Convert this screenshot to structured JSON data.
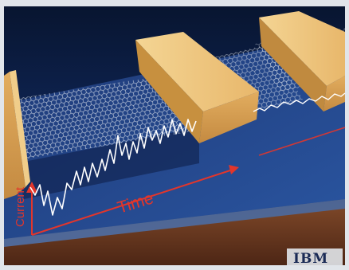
{
  "figure": {
    "axis_x_label": "Time",
    "axis_y_label": "Current",
    "logo_text": "IBM"
  },
  "colors": {
    "background_top": "#0b1a3f",
    "background_bottom": "#1e4a8c",
    "substrate_top": "#2c4f94",
    "substrate_side": "#6b3a22",
    "electrode_top": "#efc57d",
    "electrode_front": "#d9a356",
    "electrode_side": "#b8823e",
    "graphene": "#cfd6e0",
    "signal": "#ffffff",
    "axis": "#e2362b"
  }
}
